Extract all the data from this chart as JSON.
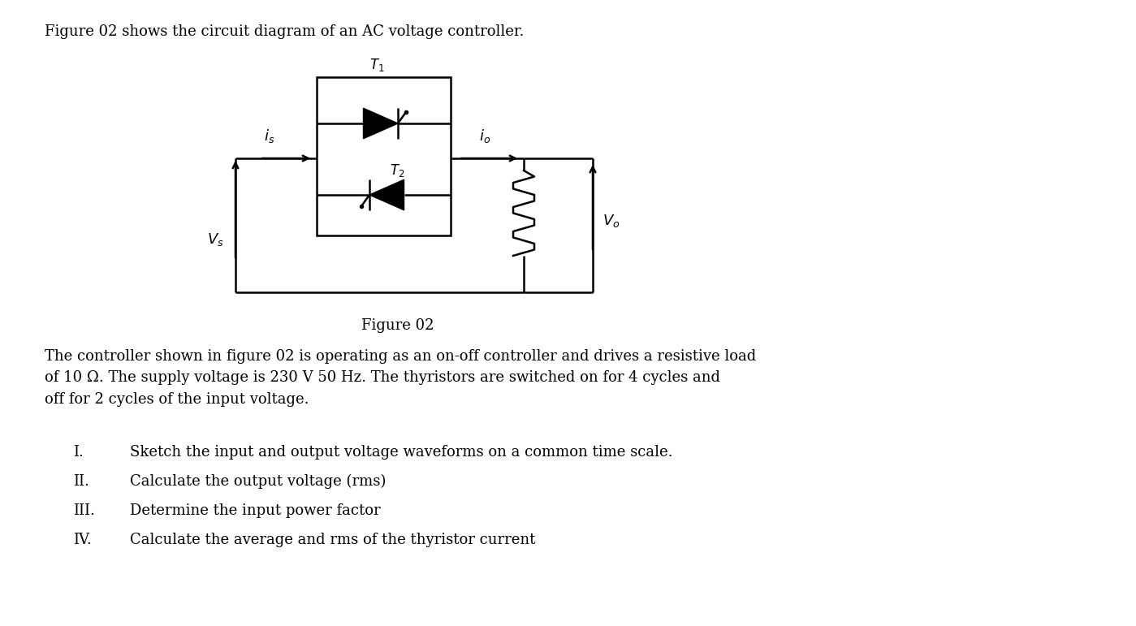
{
  "title_text": "Figure 02 shows the circuit diagram of an AC voltage controller.",
  "figure_caption": "Figure 02",
  "body_text_1": "The controller shown in figure 02 is operating as an on-off controller and drives a resistive load\nof 10 Ω. The supply voltage is 230 V 50 Hz. The thyristors are switched on for 4 cycles and\noff for 2 cycles of the input voltage.",
  "list_items": [
    "Sketch the input and output voltage waveforms on a common time scale.",
    "Calculate the output voltage (rms)",
    "Determine the input power factor",
    "Calculate the average and rms of the thyristor current"
  ],
  "list_labels": [
    "I.",
    "II.",
    "III.",
    "IV."
  ],
  "bg_color": "#ffffff",
  "line_color": "#000000",
  "font_size_title": 13,
  "font_size_body": 13,
  "font_size_caption": 13
}
